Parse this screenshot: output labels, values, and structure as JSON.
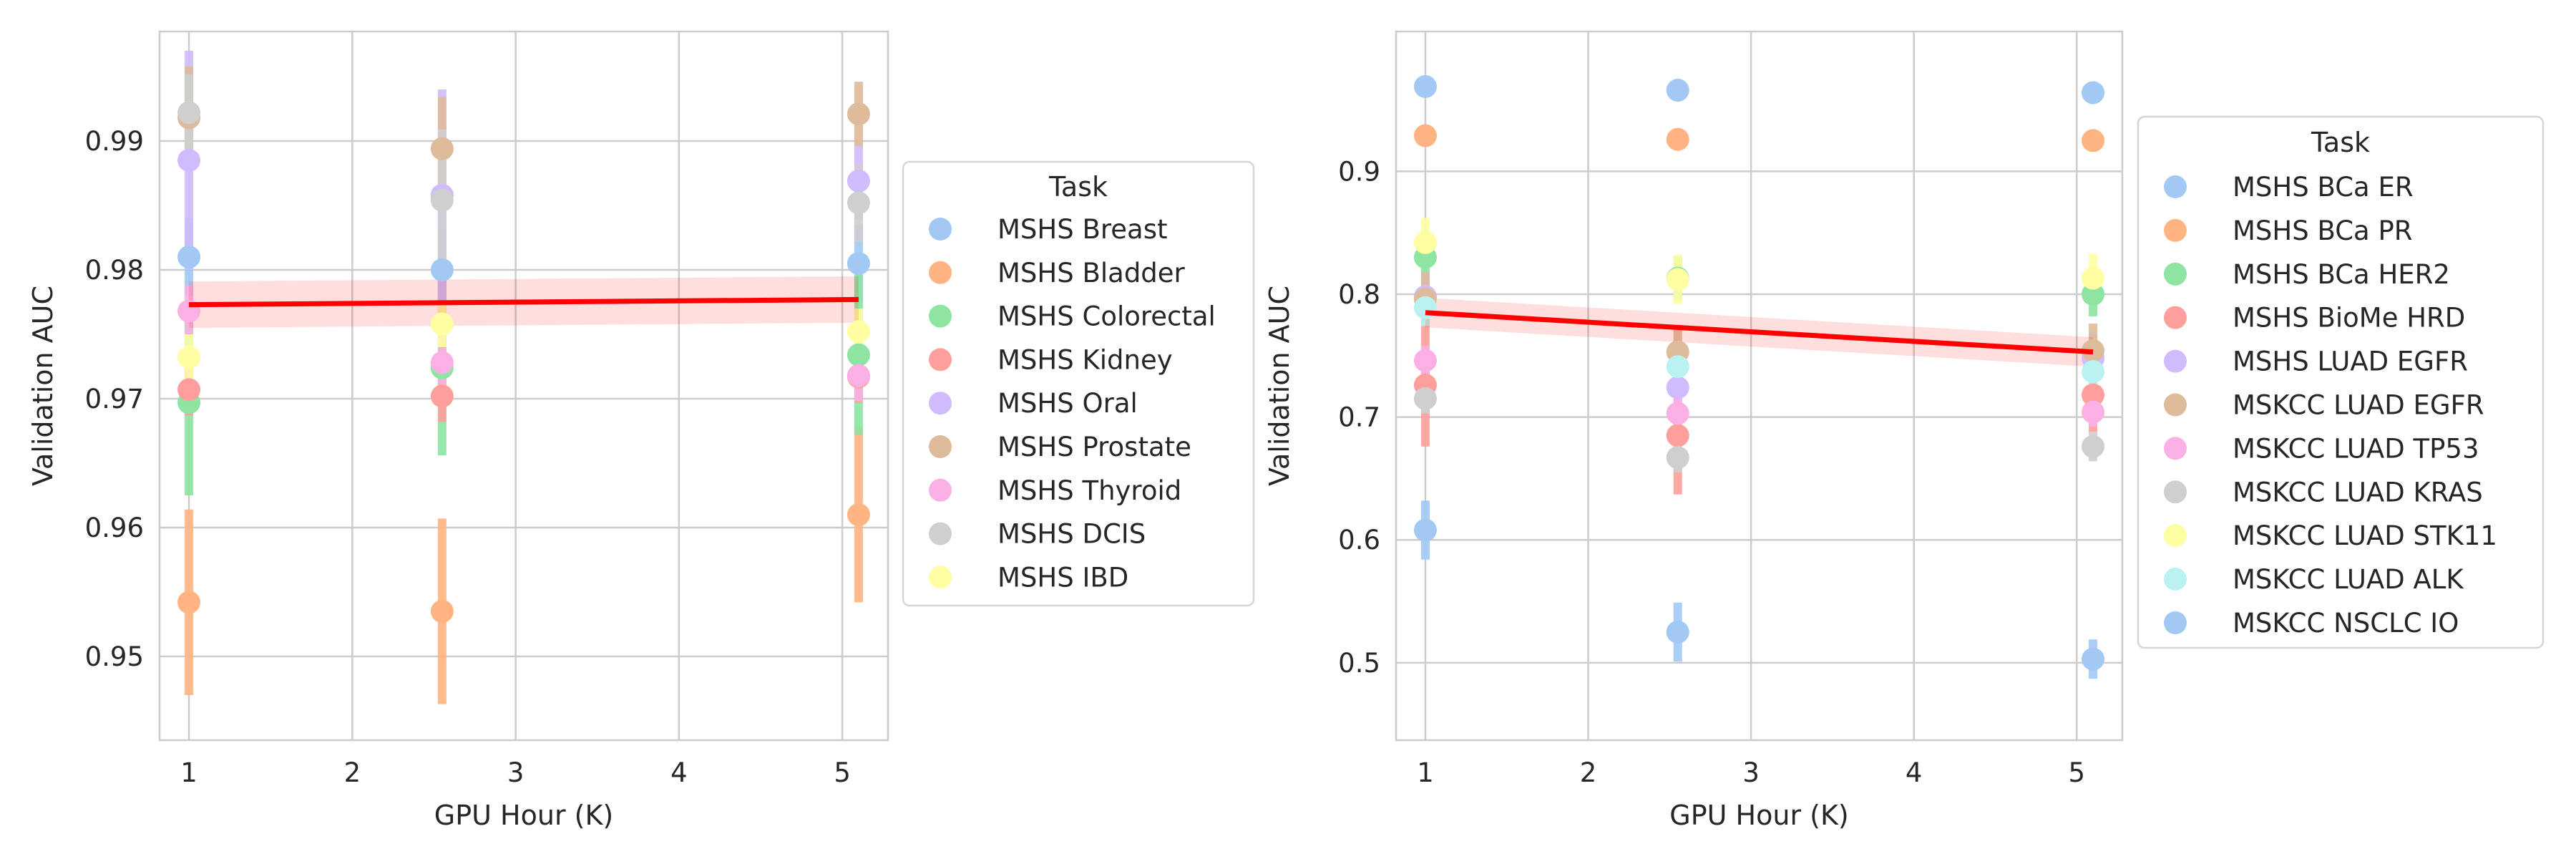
{
  "chart_data": [
    {
      "type": "scatter",
      "xlabel": "GPU Hour (K)",
      "ylabel": "Validation AUC",
      "xlim": [
        0.82,
        5.28
      ],
      "ylim": [
        0.9435,
        0.9985
      ],
      "xticks": [
        1,
        2,
        3,
        4,
        5
      ],
      "xtick_labels": [
        "1",
        "2",
        "3",
        "4",
        "5"
      ],
      "yticks": [
        0.95,
        0.96,
        0.97,
        0.98,
        0.99
      ],
      "ytick_labels": [
        "0.95",
        "0.96",
        "0.97",
        "0.98",
        "0.99"
      ],
      "x": [
        1.0,
        2.55,
        5.1
      ],
      "legend": {
        "title": "Task",
        "placement": "outside-right"
      },
      "series": [
        {
          "name": "MSHS Breast",
          "color": "#a1c9f4",
          "values": [
            0.981,
            0.98,
            0.9805
          ],
          "err": [
            0.003,
            0.003,
            0.003
          ]
        },
        {
          "name": "MSHS Bladder",
          "color": "#ffb482",
          "values": [
            0.9542,
            0.9535,
            0.961
          ],
          "err": [
            0.0072,
            0.0072,
            0.0068
          ]
        },
        {
          "name": "MSHS Colorectal",
          "color": "#8de5a1",
          "values": [
            0.9697,
            0.9724,
            0.9734
          ],
          "err": [
            0.0072,
            0.0068,
            0.0062
          ]
        },
        {
          "name": "MSHS Kidney",
          "color": "#ff9f9b",
          "values": [
            0.9707,
            0.9702,
            0.9717
          ],
          "err": [
            0.002,
            0.002,
            0.002
          ]
        },
        {
          "name": "MSHS Oral",
          "color": "#d0bbff",
          "values": [
            0.9885,
            0.9858,
            0.9869
          ],
          "err": [
            0.0085,
            0.0082,
            0.003
          ]
        },
        {
          "name": "MSHS Prostate",
          "color": "#debb9b",
          "values": [
            0.9918,
            0.9894,
            0.9921
          ],
          "err": [
            0.004,
            0.004,
            0.0025
          ]
        },
        {
          "name": "MSHS Thyroid",
          "color": "#fab0e4",
          "values": [
            0.9768,
            0.9728,
            0.9718
          ],
          "err": [
            0.002,
            0.002,
            0.002
          ]
        },
        {
          "name": "MSHS DCIS",
          "color": "#cfcfcf",
          "values": [
            0.9922,
            0.9854,
            0.9852
          ],
          "err": [
            0.003,
            0.0055,
            0.003
          ]
        },
        {
          "name": "MSHS IBD",
          "color": "#fffea3",
          "values": [
            0.9732,
            0.9758,
            0.9752
          ],
          "err": [
            0.0018,
            0.0018,
            0.0018
          ]
        }
      ],
      "regression": {
        "color": "#ff0000",
        "x": [
          1.0,
          5.1
        ],
        "y": [
          0.9773,
          0.9777
        ],
        "ci": [
          0.0018,
          0.0018
        ]
      }
    },
    {
      "type": "scatter",
      "xlabel": "GPU Hour (K)",
      "ylabel": "Validation AUC",
      "xlim": [
        0.82,
        5.28
      ],
      "ylim": [
        0.437,
        1.0138
      ],
      "xticks": [
        1,
        2,
        3,
        4,
        5
      ],
      "xtick_labels": [
        "1",
        "2",
        "3",
        "4",
        "5"
      ],
      "yticks": [
        0.5,
        0.6,
        0.7,
        0.8,
        0.9
      ],
      "ytick_labels": [
        "0.5",
        "0.6",
        "0.7",
        "0.8",
        "0.9"
      ],
      "x": [
        1.0,
        2.55,
        5.1
      ],
      "legend": {
        "title": "Task",
        "placement": "outside-right"
      },
      "series": [
        {
          "name": "MSHS BCa ER",
          "color": "#a1c9f4",
          "values": [
            0.969,
            0.966,
            0.964
          ],
          "err": [
            0.008,
            0.008,
            0.008
          ]
        },
        {
          "name": "MSHS BCa PR",
          "color": "#ffb482",
          "values": [
            0.929,
            0.926,
            0.925
          ],
          "err": [
            0.008,
            0.008,
            0.008
          ]
        },
        {
          "name": "MSHS BCa HER2",
          "color": "#8de5a1",
          "values": [
            0.83,
            0.813,
            0.8
          ],
          "err": [
            0.018,
            0.018,
            0.018
          ]
        },
        {
          "name": "MSHS BioMe HRD",
          "color": "#ff9f9b",
          "values": [
            0.726,
            0.685,
            0.718
          ],
          "err": [
            0.05,
            0.048,
            0.03
          ]
        },
        {
          "name": "MSHS LUAD EGFR",
          "color": "#d0bbff",
          "values": [
            0.798,
            0.724,
            0.748
          ],
          "err": [
            0.02,
            0.02,
            0.02
          ]
        },
        {
          "name": "MSKCC LUAD EGFR",
          "color": "#debb9b",
          "values": [
            0.796,
            0.753,
            0.754
          ],
          "err": [
            0.022,
            0.022,
            0.022
          ]
        },
        {
          "name": "MSKCC LUAD TP53",
          "color": "#fab0e4",
          "values": [
            0.746,
            0.703,
            0.704
          ],
          "err": [
            0.012,
            0.012,
            0.012
          ]
        },
        {
          "name": "MSKCC LUAD KRAS",
          "color": "#cfcfcf",
          "values": [
            0.715,
            0.667,
            0.676
          ],
          "err": [
            0.012,
            0.012,
            0.012
          ]
        },
        {
          "name": "MSKCC LUAD STK11",
          "color": "#fffea3",
          "values": [
            0.842,
            0.812,
            0.813
          ],
          "err": [
            0.02,
            0.02,
            0.02
          ]
        },
        {
          "name": "MSKCC LUAD ALK",
          "color": "#b9f2f0",
          "values": [
            0.789,
            0.741,
            0.737
          ],
          "err": [
            0.015,
            0.015,
            0.015
          ]
        },
        {
          "name": "MSKCC NSCLC IO",
          "color": "#a1c9f4",
          "values": [
            0.608,
            0.525,
            0.503
          ],
          "err": [
            0.024,
            0.024,
            0.016
          ]
        }
      ],
      "regression": {
        "color": "#ff0000",
        "x": [
          1.0,
          5.1
        ],
        "y": [
          0.785,
          0.753
        ],
        "ci": [
          0.012,
          0.012
        ]
      }
    }
  ]
}
